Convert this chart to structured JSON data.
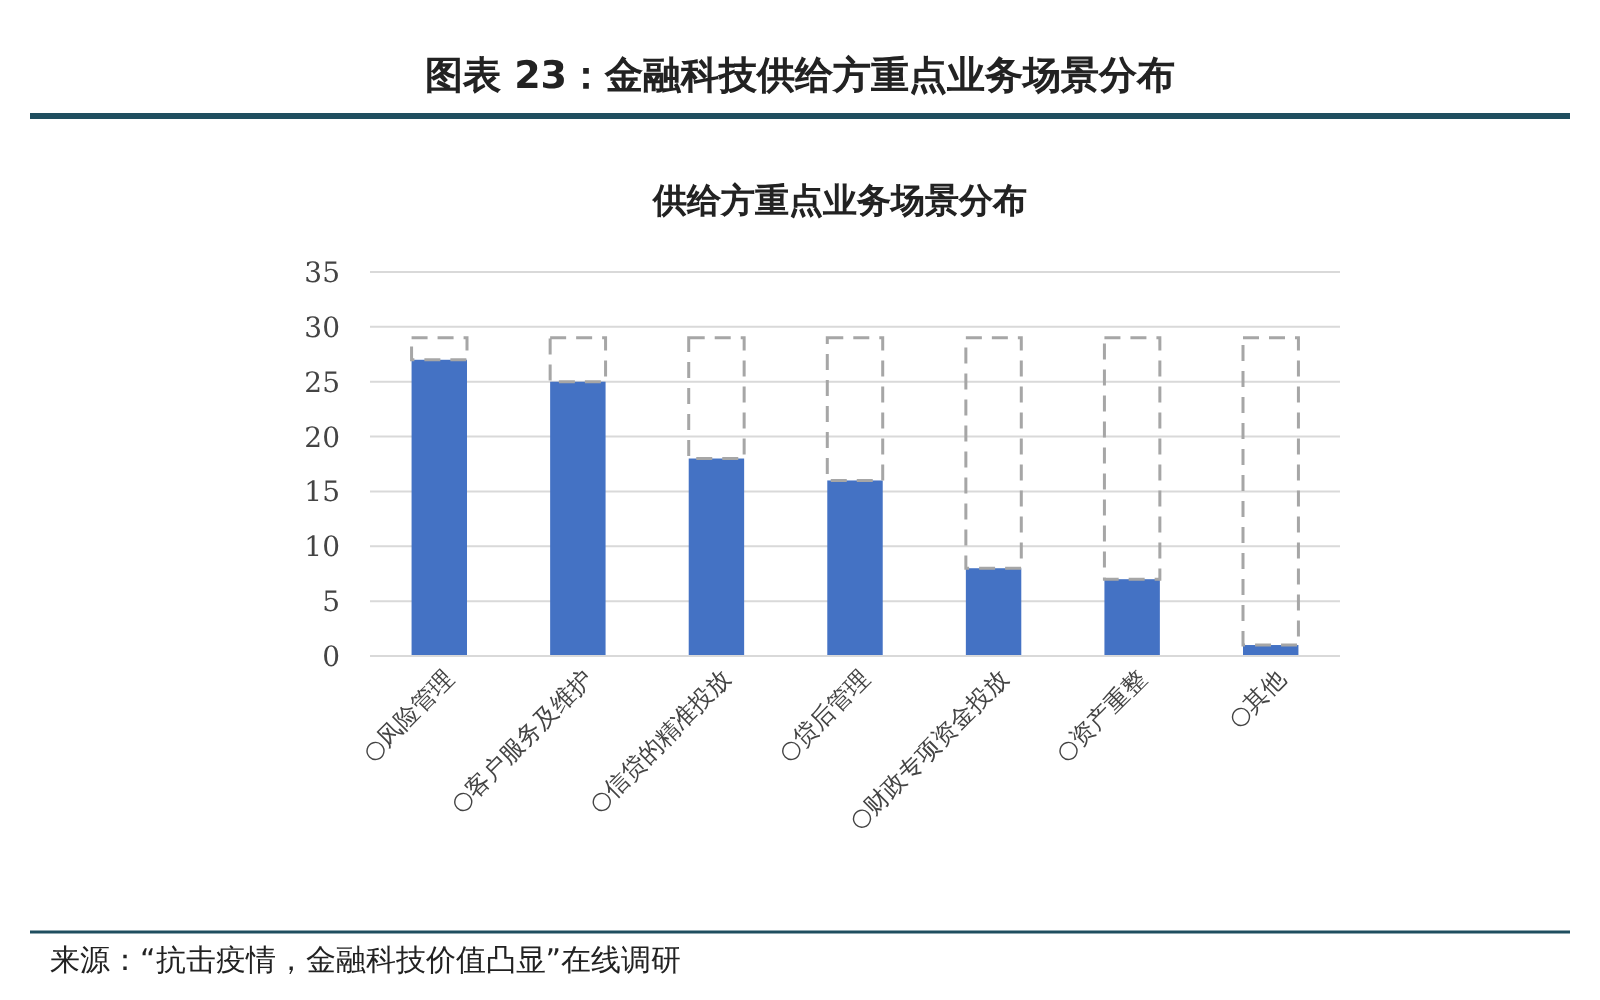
{
  "chart_data": {
    "type": "bar",
    "title": "图表 23：金融科技供给方重点业务场景分布",
    "subtitle": "供给方重点业务场景分布",
    "annotations": [
      "来源：“抗击疫情，金融科技价值凸显”在线调研"
    ],
    "categories": [
      "○风险管理",
      "○客户服务及维护",
      "○信贷的精准投放",
      "○贷后管理",
      "○财政专项资金投放",
      "○资产重整",
      "○其他"
    ],
    "stacked": true,
    "series": [
      {
        "color": "#4472c4",
        "values": [
          27,
          25,
          18,
          16,
          8,
          7,
          1
        ]
      },
      {
        "color": "#a6a6a6",
        "line_style": "dashed",
        "values": [
          2,
          4,
          11,
          13,
          21,
          22,
          28
        ]
      }
    ],
    "ylim": [
      0,
      35
    ],
    "yticks": [
      0,
      5,
      10,
      15,
      20,
      25,
      30,
      35
    ],
    "grid": "y"
  }
}
